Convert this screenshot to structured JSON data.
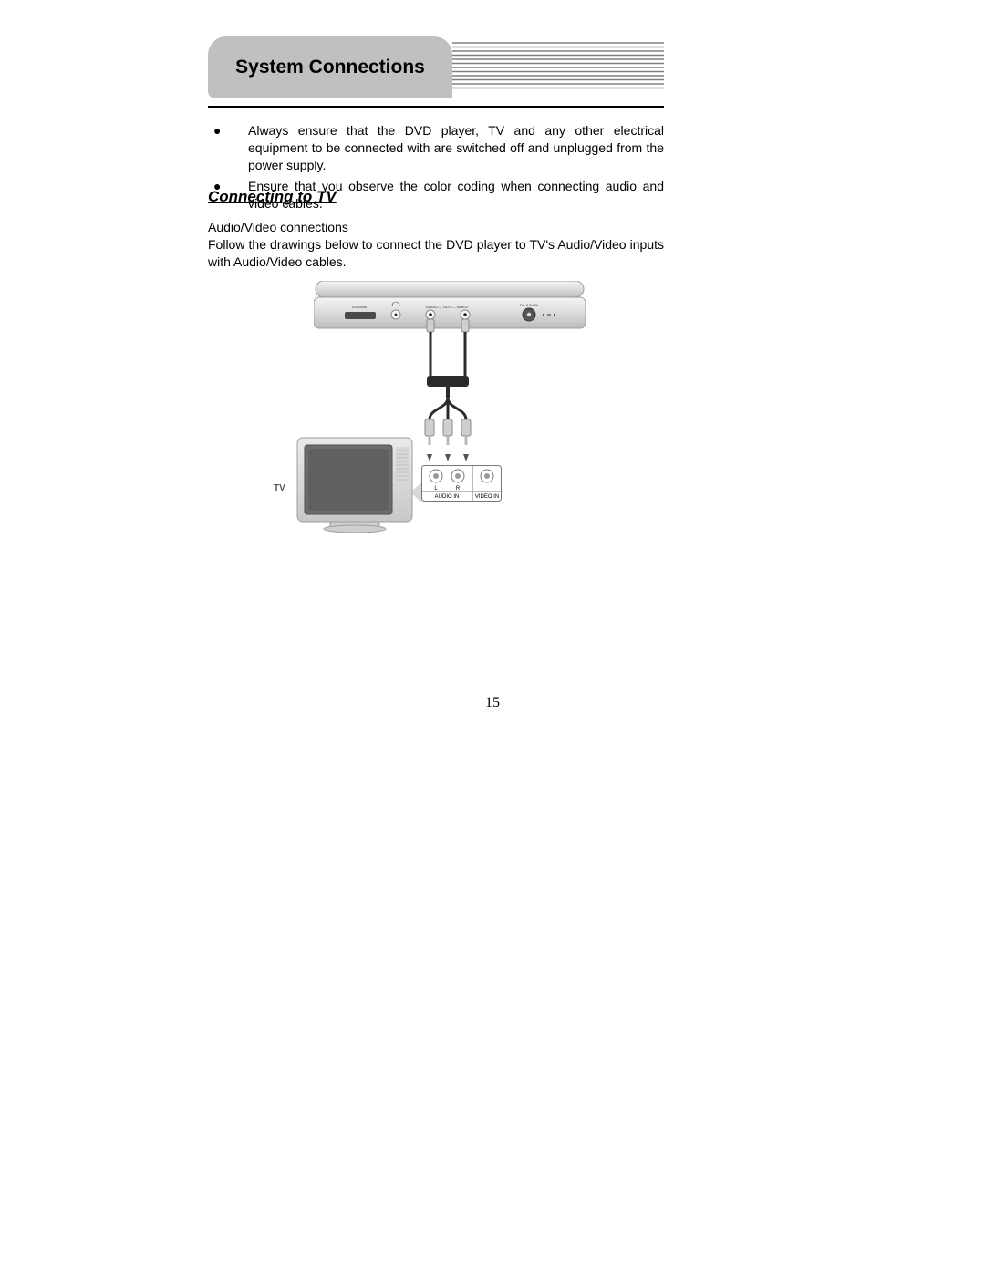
{
  "header": {
    "title": "System Connections",
    "bg_color": "#c0c0c0",
    "stripe_color": "#808080",
    "stripe_count": 12
  },
  "bullets": [
    "Always ensure that the DVD player, TV and any other electrical equipment to be connected with are switched off and unplugged from the power supply.",
    "Ensure that you observe the color coding when connecting audio and video cables."
  ],
  "section": {
    "title": "Connecting to TV",
    "sub_heading": "Audio/Video connections",
    "body": "Follow the drawings below to connect the DVD player to TV's Audio/Video inputs with Audio/Video cables."
  },
  "diagram": {
    "dvd_labels": {
      "volume": "VOLUME",
      "out": "AUDIO — OUT — VIDEO",
      "dcin": "DC 9.5V IN"
    },
    "tv_label": "TV",
    "jack_labels": {
      "l": "L",
      "r": "R",
      "audio_in": "AUDIO IN",
      "video_in": "VIDEO IN"
    },
    "colors": {
      "metal_light": "#e8e8e8",
      "metal_mid": "#cfcfcf",
      "metal_dark": "#9e9e9e",
      "screen": "#6d6d6d",
      "cable": "#2a2a2a",
      "plug_tip": "#b8b8b8",
      "panel_border": "#777777"
    }
  },
  "page_number": "15"
}
